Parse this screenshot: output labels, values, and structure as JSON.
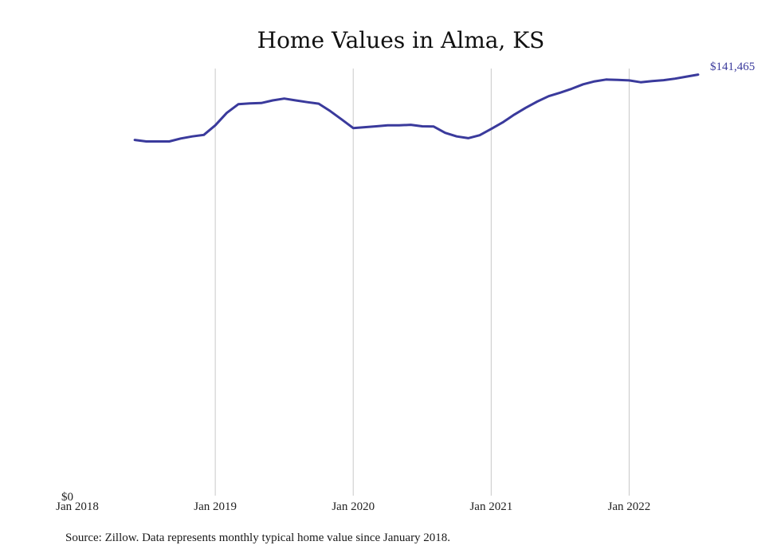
{
  "chart_data": {
    "type": "line",
    "title": "Home Values in Alma, KS",
    "xlabel": "",
    "ylabel": "",
    "x_ticks": [
      "Jan 2018",
      "Jan 2019",
      "Jan 2020",
      "Jan 2021",
      "Jan 2022"
    ],
    "y_ticks": [
      "$0"
    ],
    "xlim": [
      "2018-01",
      "2022-07"
    ],
    "ylim": [
      0,
      143500
    ],
    "grid": "vertical",
    "line_color": "#3a3a9c",
    "grid_color": "#c8c8c8",
    "end_label": "$141,465",
    "series": [
      {
        "x": [
          "2018-06",
          "2018-07",
          "2018-08",
          "2018-09",
          "2018-10",
          "2018-11",
          "2018-12",
          "2019-01",
          "2019-02",
          "2019-03",
          "2019-04",
          "2019-05",
          "2019-06",
          "2019-07",
          "2019-08",
          "2019-09",
          "2019-10",
          "2019-11",
          "2019-12",
          "2020-01",
          "2020-02",
          "2020-03",
          "2020-04",
          "2020-05",
          "2020-06",
          "2020-07",
          "2020-08",
          "2020-09",
          "2020-10",
          "2020-11",
          "2020-12",
          "2021-01",
          "2021-02",
          "2021-03",
          "2021-04",
          "2021-05",
          "2021-06",
          "2021-07",
          "2021-08",
          "2021-09",
          "2021-10",
          "2021-11",
          "2021-12",
          "2022-01",
          "2022-02",
          "2022-03",
          "2022-04",
          "2022-05",
          "2022-06",
          "2022-07"
        ],
        "values": [
          119500,
          119000,
          119000,
          119000,
          120000,
          120700,
          121200,
          124400,
          128600,
          131500,
          131800,
          131900,
          132800,
          133400,
          132800,
          132200,
          131700,
          129200,
          126400,
          123500,
          123800,
          124100,
          124400,
          124400,
          124600,
          124100,
          124000,
          121900,
          120700,
          120100,
          121100,
          123200,
          125400,
          128000,
          130300,
          132400,
          134200,
          135400,
          136700,
          138200,
          139200,
          139800,
          139700,
          139500,
          138900,
          139300,
          139600,
          140100,
          140800,
          141465
        ]
      }
    ]
  },
  "footer": {
    "source": "Source: Zillow. Data represents monthly typical home value since January 2018."
  }
}
